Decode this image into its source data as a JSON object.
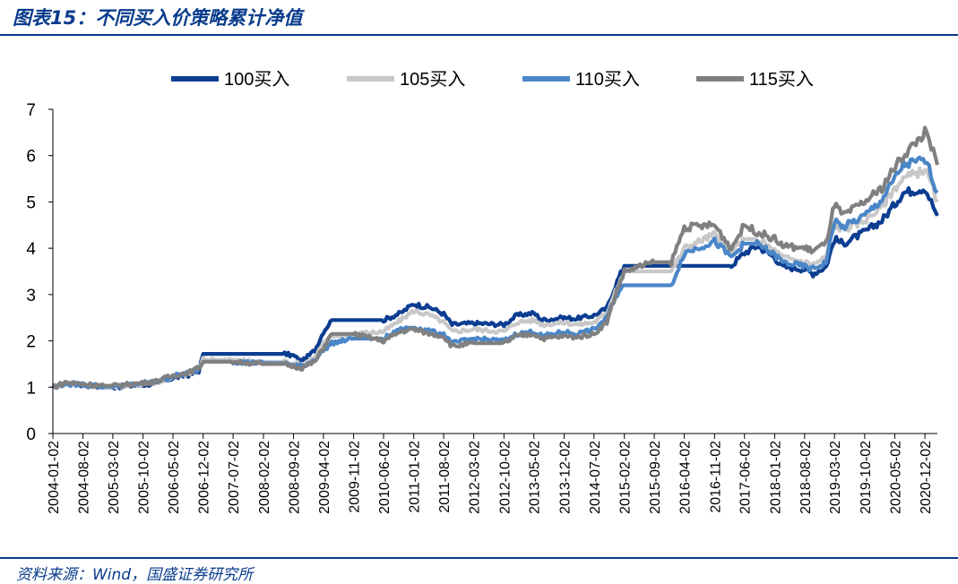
{
  "header": {
    "title": "图表15：不同买入价策略累计净值"
  },
  "footer": {
    "source": "资料来源：Wind，国盛证券研究所"
  },
  "chart_data": {
    "type": "line",
    "title": "图表15：不同买入价策略累计净值",
    "xlabel": "",
    "ylabel": "",
    "ylim": [
      0,
      7
    ],
    "yticks": [
      0,
      1,
      2,
      3,
      4,
      5,
      6,
      7
    ],
    "xlim": [
      "2004-01-02",
      "2021-02-28"
    ],
    "xticks": [
      "2004-01-02",
      "2004-08-02",
      "2005-03-02",
      "2005-10-02",
      "2006-05-02",
      "2006-12-02",
      "2007-07-02",
      "2008-02-02",
      "2008-09-02",
      "2009-04-02",
      "2009-11-02",
      "2010-06-02",
      "2011-01-02",
      "2011-08-02",
      "2012-03-02",
      "2012-10-02",
      "2013-05-02",
      "2013-12-02",
      "2014-07-02",
      "2015-02-02",
      "2015-09-02",
      "2016-04-02",
      "2016-11-02",
      "2017-06-02",
      "2018-01-02",
      "2018-08-02",
      "2019-03-02",
      "2019-10-02",
      "2020-05-02",
      "2020-12-02"
    ],
    "legend_position": "top",
    "grid": false,
    "series": [
      {
        "name": "100买入",
        "color": "#0b3d91",
        "points": [
          [
            "2004-01-02",
            1.0
          ],
          [
            "2004-04-01",
            1.07
          ],
          [
            "2004-08-02",
            1.05
          ],
          [
            "2005-01-01",
            1.0
          ],
          [
            "2005-03-02",
            1.0
          ],
          [
            "2005-10-02",
            1.05
          ],
          [
            "2006-01-01",
            1.08
          ],
          [
            "2006-05-02",
            1.2
          ],
          [
            "2006-09-01",
            1.27
          ],
          [
            "2006-11-01",
            1.35
          ],
          [
            "2006-12-02",
            1.72
          ],
          [
            "2007-07-02",
            1.72
          ],
          [
            "2008-02-02",
            1.72
          ],
          [
            "2008-07-01",
            1.72
          ],
          [
            "2008-09-02",
            1.68
          ],
          [
            "2008-11-01",
            1.55
          ],
          [
            "2009-02-01",
            1.8
          ],
          [
            "2009-04-02",
            2.2
          ],
          [
            "2009-06-01",
            2.45
          ],
          [
            "2009-11-02",
            2.45
          ],
          [
            "2010-06-02",
            2.45
          ],
          [
            "2010-10-01",
            2.6
          ],
          [
            "2011-01-02",
            2.8
          ],
          [
            "2011-03-01",
            2.75
          ],
          [
            "2011-05-01",
            2.72
          ],
          [
            "2011-08-02",
            2.58
          ],
          [
            "2011-10-01",
            2.35
          ],
          [
            "2012-03-02",
            2.38
          ],
          [
            "2012-10-02",
            2.35
          ],
          [
            "2013-01-01",
            2.55
          ],
          [
            "2013-05-02",
            2.6
          ],
          [
            "2013-07-01",
            2.45
          ],
          [
            "2013-12-02",
            2.5
          ],
          [
            "2014-03-01",
            2.48
          ],
          [
            "2014-07-02",
            2.55
          ],
          [
            "2014-10-01",
            2.7
          ],
          [
            "2014-12-01",
            3.2
          ],
          [
            "2015-02-02",
            3.62
          ],
          [
            "2015-09-02",
            3.62
          ],
          [
            "2016-04-02",
            3.62
          ],
          [
            "2016-11-02",
            3.62
          ],
          [
            "2017-03-01",
            3.62
          ],
          [
            "2017-06-02",
            3.9
          ],
          [
            "2017-09-01",
            4.05
          ],
          [
            "2018-01-02",
            3.8
          ],
          [
            "2018-03-01",
            3.6
          ],
          [
            "2018-08-02",
            3.55
          ],
          [
            "2018-10-01",
            3.45
          ],
          [
            "2019-01-01",
            3.6
          ],
          [
            "2019-03-02",
            4.2
          ],
          [
            "2019-05-01",
            4.1
          ],
          [
            "2019-10-02",
            4.35
          ],
          [
            "2020-02-01",
            4.6
          ],
          [
            "2020-05-02",
            4.95
          ],
          [
            "2020-07-01",
            5.2
          ],
          [
            "2020-12-02",
            5.3
          ],
          [
            "2021-01-15",
            5.0
          ],
          [
            "2021-02-28",
            4.7
          ]
        ]
      },
      {
        "name": "105买入",
        "color": "#c8c8c8",
        "points": [
          [
            "2004-01-02",
            1.0
          ],
          [
            "2004-04-01",
            1.08
          ],
          [
            "2004-08-02",
            1.06
          ],
          [
            "2005-01-01",
            1.01
          ],
          [
            "2005-03-02",
            1.01
          ],
          [
            "2005-10-02",
            1.07
          ],
          [
            "2006-01-01",
            1.1
          ],
          [
            "2006-05-02",
            1.22
          ],
          [
            "2006-09-01",
            1.3
          ],
          [
            "2006-11-01",
            1.38
          ],
          [
            "2006-12-02",
            1.6
          ],
          [
            "2007-07-02",
            1.58
          ],
          [
            "2008-02-02",
            1.55
          ],
          [
            "2008-07-01",
            1.55
          ],
          [
            "2008-09-02",
            1.52
          ],
          [
            "2008-11-01",
            1.5
          ],
          [
            "2009-02-01",
            1.65
          ],
          [
            "2009-04-02",
            1.95
          ],
          [
            "2009-06-01",
            2.1
          ],
          [
            "2009-11-02",
            2.15
          ],
          [
            "2010-06-02",
            2.2
          ],
          [
            "2010-10-01",
            2.45
          ],
          [
            "2011-01-02",
            2.65
          ],
          [
            "2011-03-01",
            2.6
          ],
          [
            "2011-05-01",
            2.55
          ],
          [
            "2011-08-02",
            2.4
          ],
          [
            "2011-10-01",
            2.2
          ],
          [
            "2012-03-02",
            2.25
          ],
          [
            "2012-10-02",
            2.2
          ],
          [
            "2013-01-01",
            2.4
          ],
          [
            "2013-05-02",
            2.45
          ],
          [
            "2013-07-01",
            2.35
          ],
          [
            "2013-12-02",
            2.4
          ],
          [
            "2014-03-01",
            2.35
          ],
          [
            "2014-07-02",
            2.4
          ],
          [
            "2014-10-01",
            2.6
          ],
          [
            "2014-12-01",
            3.1
          ],
          [
            "2015-02-02",
            3.5
          ],
          [
            "2015-09-02",
            3.5
          ],
          [
            "2016-01-01",
            3.5
          ],
          [
            "2016-04-02",
            4.0
          ],
          [
            "2016-11-02",
            4.3
          ],
          [
            "2017-03-01",
            3.9
          ],
          [
            "2017-06-02",
            4.2
          ],
          [
            "2017-09-01",
            4.2
          ],
          [
            "2018-01-02",
            3.95
          ],
          [
            "2018-03-01",
            3.8
          ],
          [
            "2018-08-02",
            3.7
          ],
          [
            "2018-10-01",
            3.65
          ],
          [
            "2019-01-01",
            3.8
          ],
          [
            "2019-03-02",
            4.5
          ],
          [
            "2019-05-01",
            4.4
          ],
          [
            "2019-10-02",
            4.6
          ],
          [
            "2020-02-01",
            4.9
          ],
          [
            "2020-05-02",
            5.3
          ],
          [
            "2020-07-01",
            5.5
          ],
          [
            "2020-12-02",
            5.7
          ],
          [
            "2021-01-15",
            5.4
          ],
          [
            "2021-02-28",
            5.0
          ]
        ]
      },
      {
        "name": "110买入",
        "color": "#4a86c8",
        "points": [
          [
            "2004-01-02",
            1.0
          ],
          [
            "2004-04-01",
            1.08
          ],
          [
            "2004-08-02",
            1.06
          ],
          [
            "2005-01-01",
            1.02
          ],
          [
            "2005-03-02",
            1.02
          ],
          [
            "2005-10-02",
            1.08
          ],
          [
            "2006-01-01",
            1.12
          ],
          [
            "2006-05-02",
            1.24
          ],
          [
            "2006-09-01",
            1.32
          ],
          [
            "2006-11-01",
            1.4
          ],
          [
            "2006-12-02",
            1.55
          ],
          [
            "2007-07-02",
            1.55
          ],
          [
            "2008-02-02",
            1.52
          ],
          [
            "2008-07-01",
            1.52
          ],
          [
            "2008-09-02",
            1.48
          ],
          [
            "2008-11-01",
            1.45
          ],
          [
            "2009-02-01",
            1.6
          ],
          [
            "2009-04-02",
            1.8
          ],
          [
            "2009-06-01",
            1.95
          ],
          [
            "2009-11-02",
            2.05
          ],
          [
            "2010-06-02",
            2.05
          ],
          [
            "2010-10-01",
            2.25
          ],
          [
            "2011-01-02",
            2.3
          ],
          [
            "2011-03-01",
            2.25
          ],
          [
            "2011-05-01",
            2.2
          ],
          [
            "2011-08-02",
            2.15
          ],
          [
            "2011-10-01",
            1.95
          ],
          [
            "2012-03-02",
            2.05
          ],
          [
            "2012-10-02",
            2.0
          ],
          [
            "2013-01-01",
            2.15
          ],
          [
            "2013-05-02",
            2.2
          ],
          [
            "2013-07-01",
            2.1
          ],
          [
            "2013-12-02",
            2.2
          ],
          [
            "2014-03-01",
            2.15
          ],
          [
            "2014-07-02",
            2.25
          ],
          [
            "2014-10-01",
            2.5
          ],
          [
            "2014-12-01",
            2.95
          ],
          [
            "2015-02-02",
            3.2
          ],
          [
            "2015-09-02",
            3.2
          ],
          [
            "2016-01-01",
            3.2
          ],
          [
            "2016-04-02",
            3.9
          ],
          [
            "2016-11-02",
            4.15
          ],
          [
            "2017-03-01",
            3.8
          ],
          [
            "2017-06-02",
            4.1
          ],
          [
            "2017-09-01",
            4.1
          ],
          [
            "2018-01-02",
            3.85
          ],
          [
            "2018-03-01",
            3.7
          ],
          [
            "2018-08-02",
            3.6
          ],
          [
            "2018-10-01",
            3.55
          ],
          [
            "2019-01-01",
            3.7
          ],
          [
            "2019-03-02",
            4.6
          ],
          [
            "2019-05-01",
            4.45
          ],
          [
            "2019-10-02",
            4.7
          ],
          [
            "2020-02-01",
            5.05
          ],
          [
            "2020-05-02",
            5.5
          ],
          [
            "2020-07-01",
            5.8
          ],
          [
            "2020-12-02",
            5.9
          ],
          [
            "2021-01-15",
            5.6
          ],
          [
            "2021-02-28",
            5.2
          ]
        ]
      },
      {
        "name": "115买入",
        "color": "#808080",
        "points": [
          [
            "2004-01-02",
            1.0
          ],
          [
            "2004-04-01",
            1.1
          ],
          [
            "2004-08-02",
            1.07
          ],
          [
            "2005-01-01",
            1.03
          ],
          [
            "2005-03-02",
            1.03
          ],
          [
            "2005-10-02",
            1.09
          ],
          [
            "2006-01-01",
            1.13
          ],
          [
            "2006-05-02",
            1.25
          ],
          [
            "2006-09-01",
            1.33
          ],
          [
            "2006-11-01",
            1.42
          ],
          [
            "2006-12-02",
            1.55
          ],
          [
            "2007-07-02",
            1.55
          ],
          [
            "2008-02-02",
            1.5
          ],
          [
            "2008-07-01",
            1.5
          ],
          [
            "2008-09-02",
            1.45
          ],
          [
            "2008-11-01",
            1.42
          ],
          [
            "2009-02-01",
            1.55
          ],
          [
            "2009-04-02",
            1.85
          ],
          [
            "2009-06-01",
            2.15
          ],
          [
            "2009-11-02",
            2.15
          ],
          [
            "2010-06-02",
            2.0
          ],
          [
            "2010-10-01",
            2.2
          ],
          [
            "2011-01-02",
            2.25
          ],
          [
            "2011-03-01",
            2.2
          ],
          [
            "2011-05-01",
            2.15
          ],
          [
            "2011-08-02",
            2.1
          ],
          [
            "2011-10-01",
            1.88
          ],
          [
            "2012-03-02",
            1.95
          ],
          [
            "2012-10-02",
            1.95
          ],
          [
            "2013-01-01",
            2.1
          ],
          [
            "2013-05-02",
            2.15
          ],
          [
            "2013-07-01",
            2.05
          ],
          [
            "2013-12-02",
            2.1
          ],
          [
            "2014-03-01",
            2.08
          ],
          [
            "2014-07-02",
            2.15
          ],
          [
            "2014-10-01",
            2.4
          ],
          [
            "2014-12-01",
            3.0
          ],
          [
            "2015-02-02",
            3.5
          ],
          [
            "2015-09-02",
            3.7
          ],
          [
            "2016-01-01",
            3.7
          ],
          [
            "2016-04-02",
            4.45
          ],
          [
            "2016-11-02",
            4.5
          ],
          [
            "2017-03-01",
            4.0
          ],
          [
            "2017-06-02",
            4.5
          ],
          [
            "2017-09-01",
            4.35
          ],
          [
            "2018-01-02",
            4.2
          ],
          [
            "2018-03-01",
            4.05
          ],
          [
            "2018-08-02",
            4.0
          ],
          [
            "2018-10-01",
            3.95
          ],
          [
            "2019-01-01",
            4.1
          ],
          [
            "2019-03-02",
            4.95
          ],
          [
            "2019-05-01",
            4.7
          ],
          [
            "2019-10-02",
            5.0
          ],
          [
            "2020-02-01",
            5.3
          ],
          [
            "2020-05-02",
            5.75
          ],
          [
            "2020-07-01",
            6.0
          ],
          [
            "2020-12-02",
            6.5
          ],
          [
            "2021-01-15",
            6.2
          ],
          [
            "2021-02-28",
            5.8
          ]
        ]
      }
    ]
  }
}
